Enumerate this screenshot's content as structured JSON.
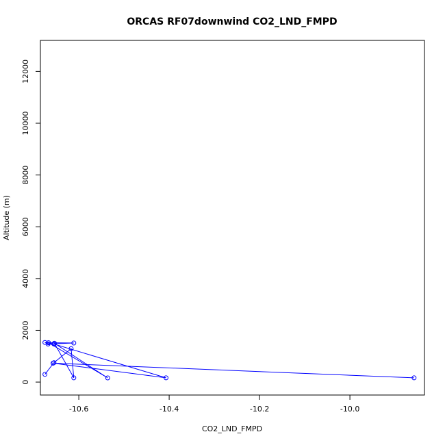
{
  "chart_data": {
    "type": "line",
    "title": "ORCAS RF07downwind CO2_LND_FMPD",
    "xlabel": "CO2_LND_FMPD",
    "ylabel": "Altitude (m)",
    "xlim": [
      -10.685,
      -9.835
    ],
    "ylim": [
      -500,
      13200
    ],
    "x_ticks": [
      -10.6,
      -10.4,
      -10.2,
      -10.0
    ],
    "x_tick_labels": [
      "-10.6",
      "-10.4",
      "-10.2",
      "-10.0"
    ],
    "y_ticks": [
      0,
      2000,
      4000,
      6000,
      8000,
      10000,
      12000
    ],
    "y_tick_labels": [
      "0",
      "2000",
      "4000",
      "6000",
      "8000",
      "10000",
      "12000"
    ],
    "grid": false,
    "legend": "none",
    "color": "#0000ff",
    "series": [
      {
        "x": [
          -10.675,
          -10.655,
          -10.617,
          -10.611,
          -10.654,
          -10.536,
          -10.667,
          -10.611,
          -10.668,
          -10.675,
          -10.655,
          -10.407,
          -10.657,
          -9.858
        ],
        "y": [
          300,
          750,
          1290,
          165,
          1500,
          160,
          1520,
          1510,
          1470,
          1530,
          1470,
          165,
          730,
          165
        ]
      }
    ]
  }
}
